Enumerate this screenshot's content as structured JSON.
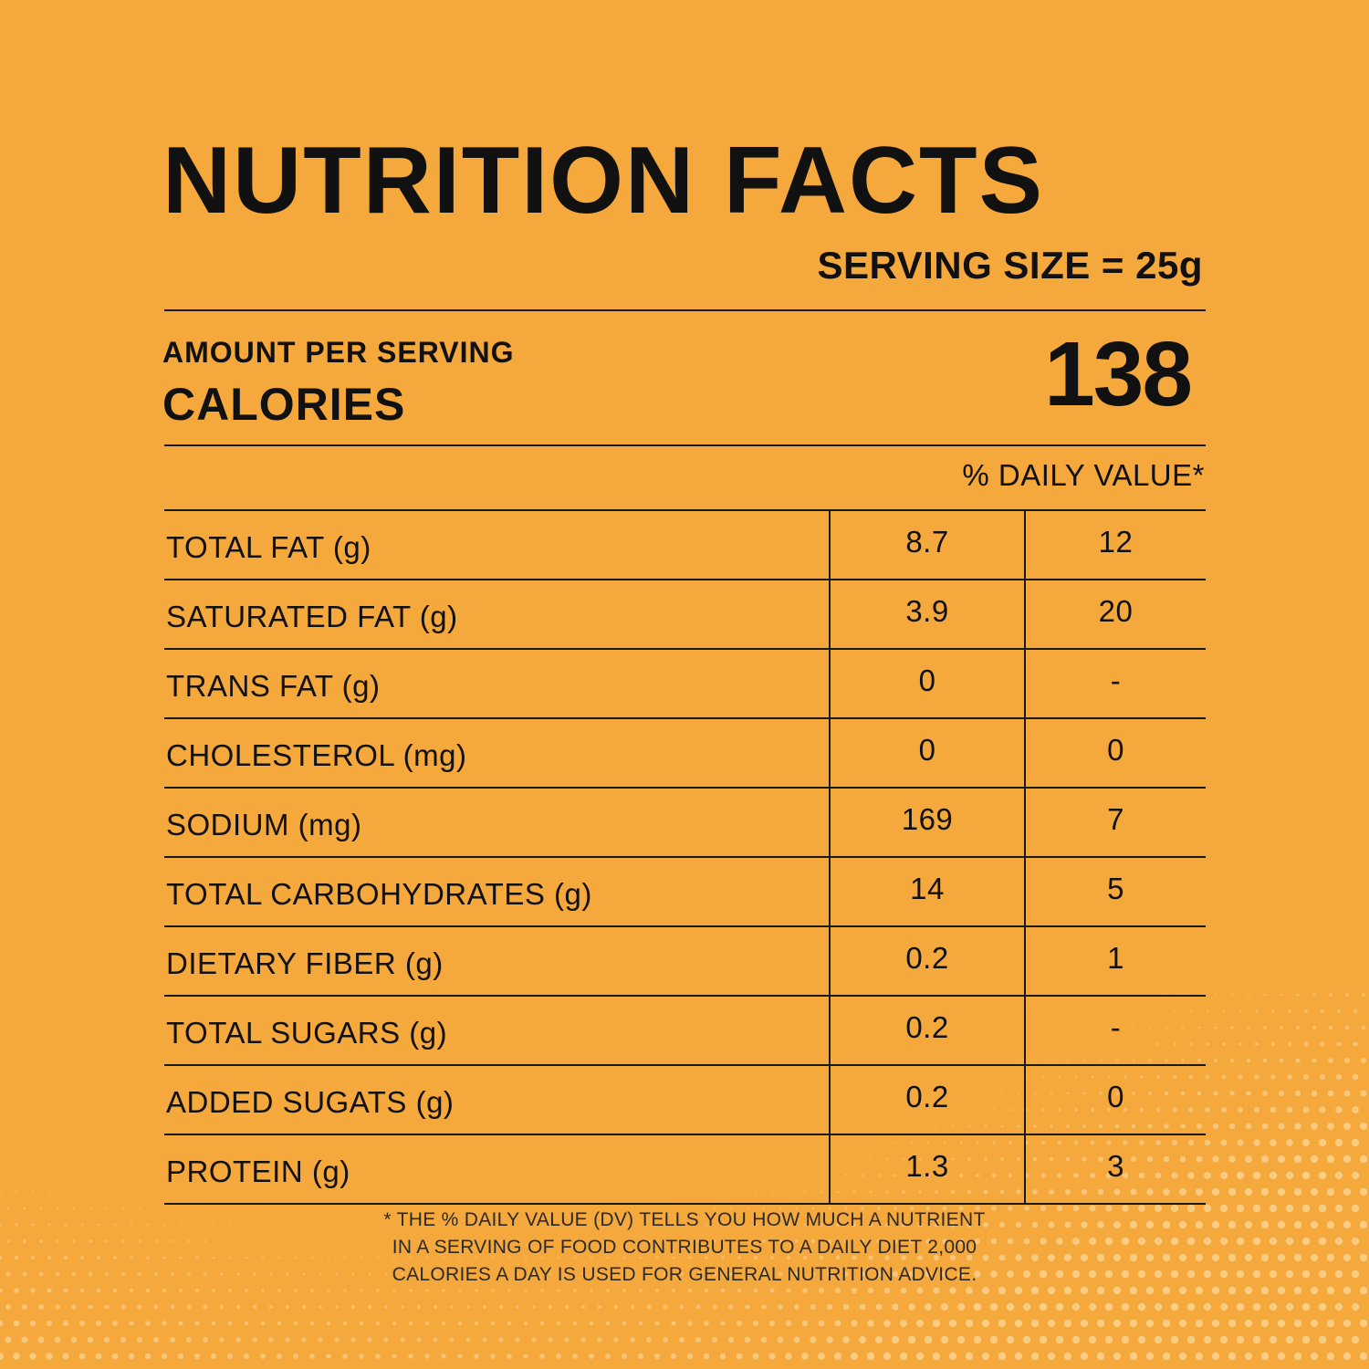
{
  "title": "NUTRITION FACTS",
  "serving_size": "SERVING SIZE = 25g",
  "amount_per_serving": "AMOUNT PER SERVING",
  "calories_label": "CALORIES",
  "calories_value": "138",
  "daily_value_header": "% DAILY VALUE*",
  "nutrients": [
    {
      "name": "TOTAL FAT (g)",
      "amount": "8.7",
      "dv": "12"
    },
    {
      "name": "SATURATED FAT (g)",
      "amount": "3.9",
      "dv": "20"
    },
    {
      "name": "TRANS FAT (g)",
      "amount": "0",
      "dv": "-"
    },
    {
      "name": "CHOLESTEROL (mg)",
      "amount": "0",
      "dv": "0"
    },
    {
      "name": "SODIUM (mg)",
      "amount": "169",
      "dv": "7"
    },
    {
      "name": "TOTAL CARBOHYDRATES (g)",
      "amount": "14",
      "dv": "5"
    },
    {
      "name": "DIETARY FIBER (g)",
      "amount": "0.2",
      "dv": "1"
    },
    {
      "name": "TOTAL SUGARS (g)",
      "amount": "0.2",
      "dv": "-"
    },
    {
      "name": "ADDED SUGATS (g)",
      "amount": "0.2",
      "dv": "0"
    },
    {
      "name": "PROTEIN (g)",
      "amount": "1.3",
      "dv": "3"
    }
  ],
  "footnote": [
    "* THE % DAILY VALUE (DV) TELLS YOU HOW MUCH A NUTRIENT",
    "IN A SERVING OF FOOD CONTRIBUTES TO A DAILY DIET 2,000",
    "CALORIES A DAY IS USED FOR GENERAL NUTRITION ADVICE."
  ],
  "colors": {
    "background": "#F5A83B",
    "text": "#111111",
    "dots": "#FBD28F"
  }
}
